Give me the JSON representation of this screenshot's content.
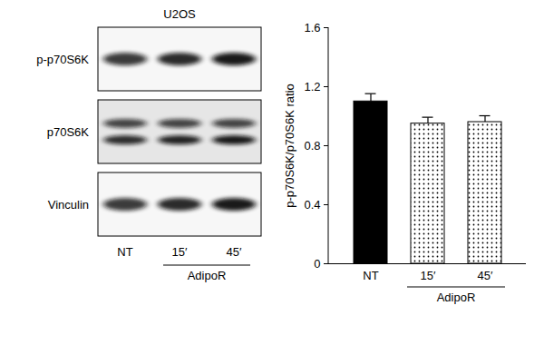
{
  "blot": {
    "title": "U2OS",
    "rows": [
      "p-p70S6K",
      "p70S6K",
      "Vinculin"
    ],
    "lanes": [
      "NT",
      "15′",
      "45′"
    ],
    "group": {
      "label": "AdipoR",
      "lanes": [
        "15′",
        "45′"
      ]
    }
  },
  "chart_data": {
    "type": "bar",
    "categories": [
      "NT",
      "15′",
      "45′"
    ],
    "values": [
      1.1,
      0.95,
      0.96
    ],
    "errors": [
      0.05,
      0.04,
      0.04
    ],
    "colors": [
      "#000000",
      "#ffffff",
      "#ffffff"
    ],
    "ylabel": "p-p70S6K/p70S6K ratio",
    "ylim": [
      0,
      1.6
    ],
    "yticks": [
      0,
      0.4,
      0.8,
      1.2,
      1.6
    ],
    "annotations": [
      {
        "text": "AdipoR",
        "categories": [
          "15′",
          "45′"
        ]
      }
    ]
  }
}
